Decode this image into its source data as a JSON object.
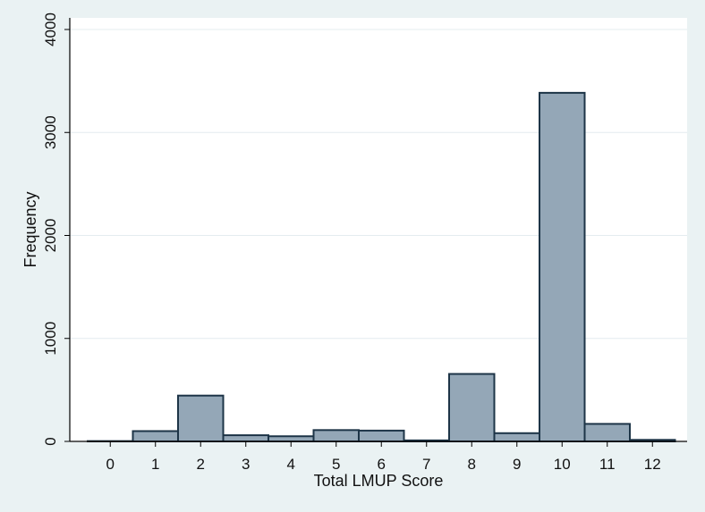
{
  "chart_data": {
    "type": "bar",
    "title": "",
    "xlabel": "Total LMUP Score",
    "ylabel": "Frequency",
    "categories": [
      "0",
      "1",
      "2",
      "3",
      "4",
      "5",
      "6",
      "7",
      "8",
      "9",
      "10",
      "11",
      "12"
    ],
    "values": [
      3,
      100,
      445,
      60,
      50,
      110,
      105,
      10,
      655,
      80,
      3385,
      170,
      15
    ],
    "ylim": [
      0,
      4000
    ],
    "yticks": [
      "0",
      "1000",
      "2000",
      "3000",
      "4000"
    ],
    "grid": true,
    "colors": {
      "background": "#eaf2f3",
      "plot_background": "#ffffff",
      "bar_fill": "#94a7b7",
      "bar_edge": "#1d3447",
      "grid": "#e4ecef",
      "axis": "#000000"
    }
  }
}
